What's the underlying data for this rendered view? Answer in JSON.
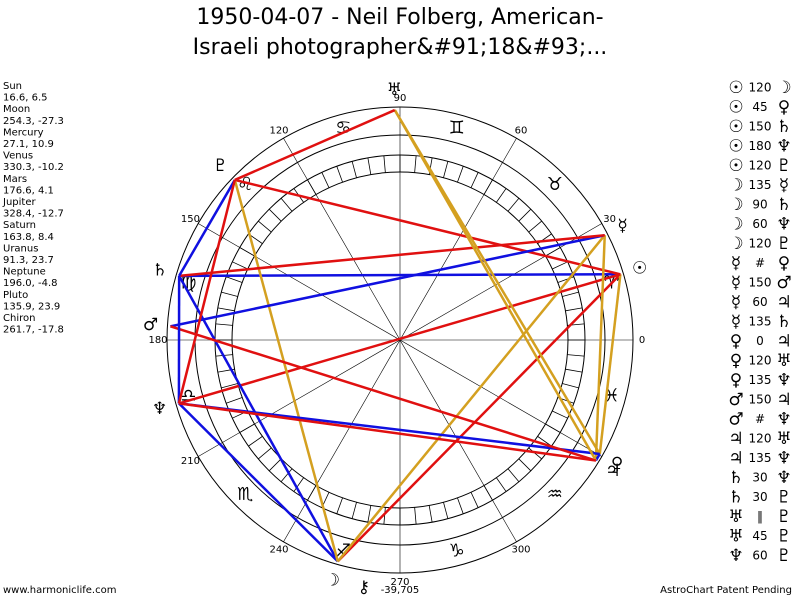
{
  "header": {
    "title_lines": [
      "1950-04-07 - Neil Folberg, American-",
      "Israeli photographer&#91;18&#93;..."
    ]
  },
  "planets": [
    {
      "name": "Sun",
      "glyph": "☉",
      "coords": "16.6, 6.5"
    },
    {
      "name": "Moon",
      "glyph": "☽",
      "coords": "254.3, -27.3"
    },
    {
      "name": "Mercury",
      "glyph": "☿",
      "coords": "27.1, 10.9"
    },
    {
      "name": "Venus",
      "glyph": "♀",
      "coords": "330.3, -10.2"
    },
    {
      "name": "Mars",
      "glyph": "♂",
      "coords": "176.6, 4.1"
    },
    {
      "name": "Jupiter",
      "glyph": "♃",
      "coords": "328.4, -12.7"
    },
    {
      "name": "Saturn",
      "glyph": "♄",
      "coords": "163.8, 8.4"
    },
    {
      "name": "Uranus",
      "glyph": "♅",
      "coords": "91.3, 23.7"
    },
    {
      "name": "Neptune",
      "glyph": "♆",
      "coords": "196.0, -4.8"
    },
    {
      "name": "Pluto",
      "glyph": "♇",
      "coords": "135.9, 23.9"
    },
    {
      "name": "Chiron",
      "glyph": "⚷",
      "coords": "261.7, -17.8"
    }
  ],
  "aspects": [
    {
      "from": "☉",
      "aspect": "120",
      "to": "☽",
      "color": "#e01010"
    },
    {
      "from": "☉",
      "aspect": "45",
      "to": "♀",
      "color": "#d4a020"
    },
    {
      "from": "☉",
      "aspect": "150",
      "to": "♄",
      "color": "#1010e0"
    },
    {
      "from": "☉",
      "aspect": "180",
      "to": "♆",
      "color": "#e01010"
    },
    {
      "from": "☉",
      "aspect": "120",
      "to": "♇",
      "color": "#e01010"
    },
    {
      "from": "☽",
      "aspect": "135",
      "to": "☿",
      "color": "#d4a020"
    },
    {
      "from": "☽",
      "aspect": "90",
      "to": "♄",
      "color": "#1010e0"
    },
    {
      "from": "☽",
      "aspect": "60",
      "to": "♆",
      "color": "#1010e0"
    },
    {
      "from": "☽",
      "aspect": "120",
      "to": "♇",
      "color": "#d4a020"
    },
    {
      "from": "☿",
      "aspect": "#",
      "to": "♀"
    },
    {
      "from": "☿",
      "aspect": "150",
      "to": "♂",
      "color": "#1010e0"
    },
    {
      "from": "☿",
      "aspect": "60",
      "to": "♃",
      "color": "#d4a020"
    },
    {
      "from": "☿",
      "aspect": "135",
      "to": "♄",
      "color": "#e01010"
    },
    {
      "from": "♀",
      "aspect": "0",
      "to": "♃",
      "color": "#1010e0"
    },
    {
      "from": "♀",
      "aspect": "120",
      "to": "♅",
      "color": "#d4a020"
    },
    {
      "from": "♀",
      "aspect": "135",
      "to": "♆",
      "color": "#1010e0"
    },
    {
      "from": "♂",
      "aspect": "150",
      "to": "♃",
      "color": "#e01010"
    },
    {
      "from": "♂",
      "aspect": "#",
      "to": "♆"
    },
    {
      "from": "♃",
      "aspect": "120",
      "to": "♅",
      "color": "#d4a020"
    },
    {
      "from": "♃",
      "aspect": "135",
      "to": "♆",
      "color": "#e01010"
    },
    {
      "from": "♄",
      "aspect": "30",
      "to": "♆",
      "color": "#1010e0"
    },
    {
      "from": "♄",
      "aspect": "30",
      "to": "♇",
      "color": "#1010e0"
    },
    {
      "from": "♅",
      "aspect": "‖",
      "to": "♇"
    },
    {
      "from": "♅",
      "aspect": "45",
      "to": "♇",
      "color": "#e01010"
    },
    {
      "from": "♆",
      "aspect": "60",
      "to": "♇",
      "color": "#e01010"
    }
  ],
  "signs": [
    "♈",
    "♉",
    "♊",
    "♋",
    "♌",
    "♍",
    "♎",
    "♏",
    "♐",
    "♑",
    "♒",
    "♓"
  ],
  "degree_labels": [
    "0",
    "30",
    "60",
    "90",
    "120",
    "150",
    "180",
    "210",
    "240",
    "270",
    "300"
  ],
  "footer": {
    "site": "www.harmoniclife.com",
    "number": "-39,705",
    "notice": "AstroChart Patent Pending"
  }
}
